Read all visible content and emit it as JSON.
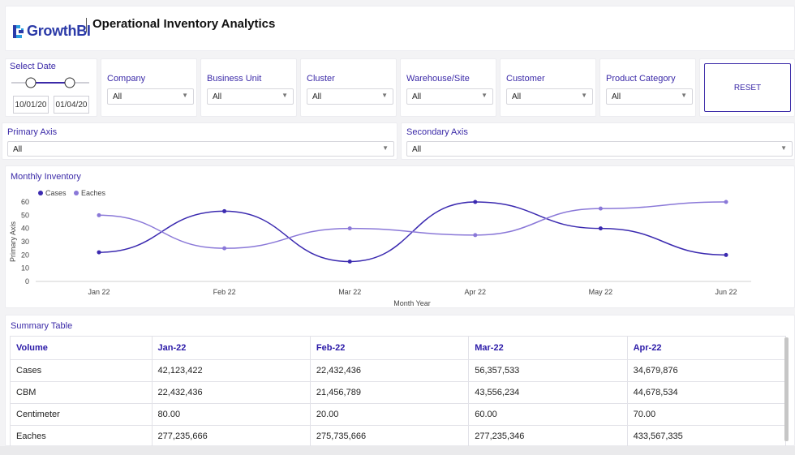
{
  "app": {
    "brand": "GrowthBI",
    "title": "Operational Inventory Analytics"
  },
  "filters": {
    "select_date_label": "Select Date",
    "date_start": "10/01/20",
    "date_end": "01/04/20",
    "dropdowns": [
      {
        "label": "Company",
        "value": "All"
      },
      {
        "label": "Business Unit",
        "value": "All"
      },
      {
        "label": "Cluster",
        "value": "All"
      },
      {
        "label": "Warehouse/Site",
        "value": "All"
      },
      {
        "label": "Customer",
        "value": "All"
      },
      {
        "label": "Product Category",
        "value": "All"
      }
    ],
    "reset_label": "RESET"
  },
  "axes": {
    "primary": {
      "label": "Primary Axis",
      "value": "All"
    },
    "secondary": {
      "label": "Secondary Axis",
      "value": "All"
    }
  },
  "chart_section": {
    "title": "Monthly Inventory"
  },
  "chart_data": {
    "type": "line",
    "categories": [
      "Jan 22",
      "Feb 22",
      "Mar 22",
      "Apr 22",
      "May 22",
      "Jun 22"
    ],
    "series": [
      {
        "name": "Cases",
        "values": [
          22,
          53,
          15,
          60,
          40,
          20
        ],
        "color": "#3b2ab0"
      },
      {
        "name": "Eaches",
        "values": [
          50,
          25,
          40,
          35,
          55,
          60
        ],
        "color": "#8a78d8"
      }
    ],
    "xlabel": "Month Year",
    "ylabel": "Primary Axis",
    "ylim": [
      0,
      60
    ],
    "yticks": [
      0,
      10,
      20,
      30,
      40,
      50,
      60
    ],
    "legend": "top-left",
    "grid": false
  },
  "summary": {
    "title": "Summary Table",
    "columns": [
      "Volume",
      "Jan-22",
      "Feb-22",
      "Mar-22",
      "Apr-22"
    ],
    "rows": [
      [
        "Cases",
        "42,123,422",
        "22,432,436",
        "56,357,533",
        "34,679,876"
      ],
      [
        "CBM",
        "22,432,436",
        "21,456,789",
        "43,556,234",
        "44,678,534"
      ],
      [
        "Centimeter",
        "80.00",
        "20.00",
        "60.00",
        "70.00"
      ],
      [
        "Eaches",
        "277,235,666",
        "275,735,666",
        "277,235,346",
        "433,567,335"
      ]
    ]
  }
}
